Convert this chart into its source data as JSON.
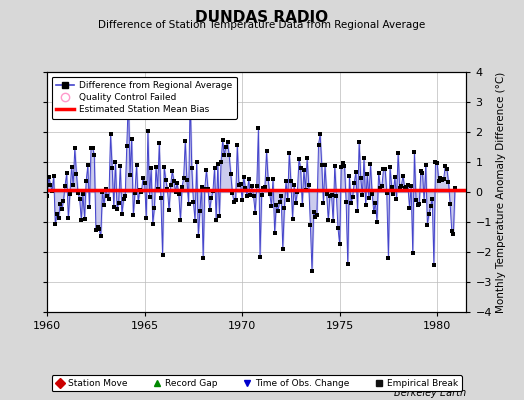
{
  "title": "DUNDAS RADIO",
  "subtitle": "Difference of Station Temperature Data from Regional Average",
  "ylabel": "Monthly Temperature Anomaly Difference (°C)",
  "xlim": [
    1960,
    1981.5
  ],
  "ylim": [
    -4,
    4
  ],
  "yticks": [
    -4,
    -3,
    -2,
    -1,
    0,
    1,
    2,
    3,
    4
  ],
  "xticks": [
    1960,
    1965,
    1970,
    1975,
    1980
  ],
  "mean_bias": 0.07,
  "line_color": "#4444cc",
  "line_fill_color": "#9999dd",
  "marker_color": "#000000",
  "bias_color": "#ff0000",
  "background_color": "#d8d8d8",
  "plot_bg_color": "#ffffff",
  "grid_color": "#bbbbbb",
  "watermark": "Berkeley Earth"
}
